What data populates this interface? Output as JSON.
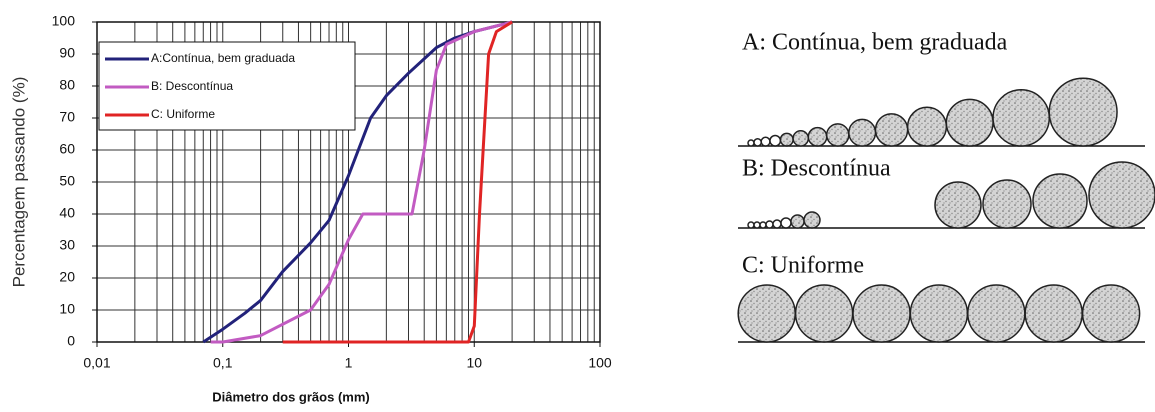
{
  "chart_data": {
    "type": "line",
    "xlabel": "Diâmetro dos grãos (mm)",
    "ylabel": "Percentagem passando (%)",
    "xscale": "log",
    "xlim": [
      0.01,
      100
    ],
    "xticks": [
      {
        "value": 0.01,
        "label": "0,01"
      },
      {
        "value": 0.1,
        "label": "0,1"
      },
      1,
      10,
      100
    ],
    "xminor": [
      0.02,
      0.03,
      0.04,
      0.05,
      0.06,
      0.07,
      0.08,
      0.09,
      0.2,
      0.3,
      0.4,
      0.5,
      0.6,
      0.7,
      0.8,
      0.9,
      2,
      3,
      4,
      5,
      6,
      7,
      8,
      9,
      20,
      30,
      40,
      50,
      60,
      70,
      80,
      90
    ],
    "ylim": [
      0,
      100
    ],
    "yticks": [
      0,
      10,
      20,
      30,
      40,
      50,
      60,
      70,
      80,
      90,
      100
    ],
    "grid": true,
    "legend": "upper left",
    "series": [
      {
        "name": "A:Contínua, bem graduada",
        "color": "#22227a",
        "x": [
          0.07,
          0.1,
          0.15,
          0.2,
          0.3,
          0.5,
          0.7,
          1,
          1.5,
          2,
          3,
          5,
          7,
          10,
          20
        ],
        "y": [
          0,
          4,
          9,
          13,
          22,
          31,
          38,
          52,
          70,
          77,
          84,
          92,
          95,
          97,
          100
        ]
      },
      {
        "name": "B: Descontínua",
        "color": "#c25bc2",
        "x": [
          0.08,
          0.1,
          0.2,
          0.5,
          0.7,
          1,
          1.3,
          3.2,
          4,
          5,
          6,
          10,
          20
        ],
        "y": [
          0,
          0,
          2,
          10,
          18,
          32,
          40,
          40,
          60,
          85,
          93,
          97,
          100
        ]
      },
      {
        "name": "C: Uniforme",
        "color": "#e02424",
        "x": [
          0.3,
          9,
          10,
          11,
          13,
          15,
          20
        ],
        "y": [
          0,
          0,
          5,
          40,
          90,
          97,
          100
        ]
      }
    ]
  },
  "illustration": {
    "labels": [
      "A: Contínua, bem graduada",
      "B: Descontínua",
      "C: Uniforme"
    ]
  }
}
